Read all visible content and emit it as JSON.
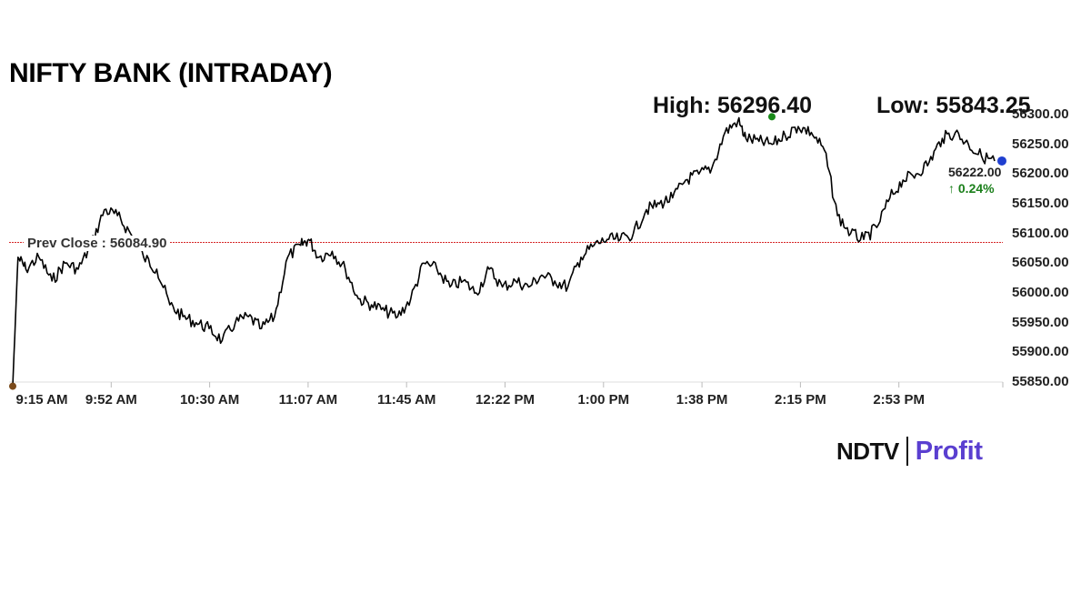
{
  "title": "NIFTY BANK (INTRADAY)",
  "stats": {
    "high_label": "High: 56296.40",
    "low_label": "Low: 55843.25"
  },
  "prev_close_label": "Prev Close : 56084.90",
  "last": {
    "value": "56222.00",
    "change": "↑ 0.24%"
  },
  "logo": {
    "left": "NDTV",
    "right": "Profit"
  },
  "colors": {
    "line": "#000000",
    "prev_close_line": "#d62728",
    "high_marker": "#1a8a1a",
    "last_marker": "#1f3fd0",
    "open_marker": "#7a4a1a",
    "change_up": "#1a7f1a",
    "brand": "#5a3fd0"
  },
  "chart_data": {
    "type": "line",
    "title": "NIFTY BANK (INTRADAY)",
    "xlabel": "",
    "ylabel": "",
    "x_ticks": [
      "9:15 AM",
      "9:52 AM",
      "10:30 AM",
      "11:07 AM",
      "11:45 AM",
      "12:22 PM",
      "1:00 PM",
      "1:38 PM",
      "2:15 PM",
      "2:53 PM"
    ],
    "y_ticks": [
      "56300.00",
      "56250.00",
      "56200.00",
      "56150.00",
      "56100.00",
      "56050.00",
      "56000.00",
      "55950.00",
      "55900.00",
      "55850.00"
    ],
    "ylim": [
      55850,
      56300
    ],
    "grid": false,
    "legend": "none",
    "prev_close": 56084.9,
    "high": 56296.4,
    "low": 55843.25,
    "last": 56222.0,
    "change_pct": 0.24,
    "series": [
      {
        "name": "NIFTY BANK",
        "x": [
          "9:15",
          "9:17",
          "9:20",
          "9:25",
          "9:30",
          "9:35",
          "9:40",
          "9:45",
          "9:50",
          "9:55",
          "10:00",
          "10:05",
          "10:10",
          "10:15",
          "10:20",
          "10:25",
          "10:30",
          "10:35",
          "10:40",
          "10:45",
          "10:50",
          "10:55",
          "11:00",
          "11:05",
          "11:08",
          "11:12",
          "11:17",
          "11:22",
          "11:27",
          "11:32",
          "11:37",
          "11:42",
          "11:47",
          "11:52",
          "11:57",
          "12:02",
          "12:07",
          "12:12",
          "12:17",
          "12:22",
          "12:27",
          "12:32",
          "12:37",
          "12:42",
          "12:47",
          "12:52",
          "12:57",
          "13:02",
          "13:07",
          "13:12",
          "13:17",
          "13:22",
          "13:27",
          "13:32",
          "13:37",
          "13:42",
          "13:47",
          "13:52",
          "13:55",
          "14:00",
          "14:05",
          "14:10",
          "14:15",
          "14:20",
          "14:25",
          "14:30",
          "14:35",
          "14:40",
          "14:45",
          "14:50",
          "14:55",
          "15:00",
          "15:05",
          "15:10",
          "15:15",
          "15:20",
          "15:25",
          "15:30"
        ],
        "values": [
          55843,
          56060,
          56040,
          56060,
          56020,
          56050,
          56040,
          56080,
          56140,
          56130,
          56100,
          56060,
          56040,
          55980,
          55960,
          55950,
          55940,
          55920,
          55950,
          55960,
          55940,
          55960,
          56060,
          56080,
          56090,
          56060,
          56070,
          56040,
          55990,
          55980,
          55970,
          55960,
          55990,
          56050,
          56040,
          56010,
          56020,
          56000,
          56040,
          56010,
          56020,
          56010,
          56030,
          56020,
          56010,
          56060,
          56080,
          56090,
          56090,
          56100,
          56140,
          56150,
          56160,
          56190,
          56200,
          56210,
          56270,
          56290,
          56260,
          56255,
          56250,
          56265,
          56280,
          56270,
          56240,
          56130,
          56100,
          56090,
          56110,
          56160,
          56190,
          56200,
          56220,
          56260,
          56270,
          56250,
          56230,
          56222
        ]
      }
    ]
  }
}
